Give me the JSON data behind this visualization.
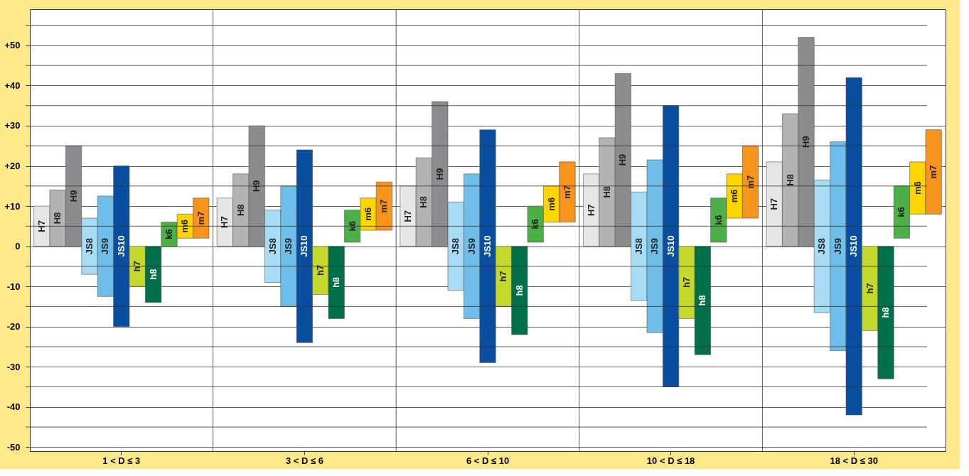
{
  "chart_data": {
    "type": "bar",
    "categories": [
      "1 < D ≤ 3",
      "3 < D ≤ 6",
      "6 < D ≤ 10",
      "10 < D ≤ 18",
      "18 < D ≤ 30"
    ],
    "series": [
      {
        "name": "H7",
        "color": "#e6e6e6",
        "base": [
          0,
          0,
          0,
          0,
          0
        ],
        "values": [
          10,
          12,
          15,
          18,
          21
        ]
      },
      {
        "name": "H8",
        "color": "#b3b3b3",
        "base": [
          0,
          0,
          0,
          0,
          0
        ],
        "values": [
          14,
          18,
          22,
          27,
          33
        ]
      },
      {
        "name": "H9",
        "color": "#8c8c8e",
        "base": [
          0,
          0,
          0,
          0,
          0
        ],
        "values": [
          25,
          30,
          36,
          43,
          52
        ]
      },
      {
        "name": "JS8",
        "color": "#a8dcf5",
        "base": [
          -7,
          -9,
          -11,
          -13.5,
          -16.5
        ],
        "values": [
          14,
          18,
          22,
          27,
          33
        ]
      },
      {
        "name": "JS9",
        "color": "#6fbde9",
        "base": [
          -12.5,
          -15,
          -18,
          -21.5,
          -26
        ],
        "values": [
          25,
          30,
          36,
          43,
          52
        ]
      },
      {
        "name": "JS10",
        "color": "#0a4ea0",
        "base": [
          -20,
          -24,
          -29,
          -35,
          -42
        ],
        "values": [
          40,
          48,
          58,
          70,
          84
        ]
      },
      {
        "name": "h7",
        "color": "#c5d92d",
        "base": [
          -10,
          -12,
          -15,
          -18,
          -21
        ],
        "values": [
          10,
          12,
          15,
          18,
          21
        ]
      },
      {
        "name": "h8",
        "color": "#00704a",
        "base": [
          -14,
          -18,
          -22,
          -27,
          -33
        ],
        "values": [
          14,
          18,
          22,
          27,
          33
        ]
      },
      {
        "name": "k6",
        "color": "#4caf48",
        "base": [
          0,
          1,
          1,
          1,
          2
        ],
        "values": [
          6,
          8,
          9,
          11,
          13
        ]
      },
      {
        "name": "m6",
        "color": "#ffd500",
        "base": [
          2,
          4,
          6,
          7,
          8
        ],
        "values": [
          6,
          8,
          9,
          11,
          13
        ]
      },
      {
        "name": "m7",
        "color": "#f7941d",
        "base": [
          2,
          4,
          6,
          7,
          8
        ],
        "values": [
          10,
          12,
          15,
          18,
          21
        ]
      }
    ],
    "ylim": [
      -51,
      59
    ],
    "yticks": [
      {
        "value": -50,
        "label": "-50"
      },
      {
        "value": -45,
        "label": null
      },
      {
        "value": -40,
        "label": "-40"
      },
      {
        "value": -35,
        "label": null
      },
      {
        "value": -30,
        "label": "-30"
      },
      {
        "value": -25,
        "label": null
      },
      {
        "value": -20,
        "label": "-20"
      },
      {
        "value": -15,
        "label": null
      },
      {
        "value": -10,
        "label": "-10"
      },
      {
        "value": -5,
        "label": null
      },
      {
        "value": 0,
        "label": "0"
      },
      {
        "value": 5,
        "label": null
      },
      {
        "value": 10,
        "label": "+10"
      },
      {
        "value": 15,
        "label": null
      },
      {
        "value": 20,
        "label": "+20"
      },
      {
        "value": 25,
        "label": null
      },
      {
        "value": 30,
        "label": "+30"
      },
      {
        "value": 35,
        "label": null
      },
      {
        "value": 40,
        "label": "+40"
      },
      {
        "value": 45,
        "label": null
      },
      {
        "value": 50,
        "label": "+50"
      },
      {
        "value": 55,
        "label": null
      }
    ],
    "grid": true,
    "legend": false
  }
}
